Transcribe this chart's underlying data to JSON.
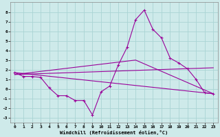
{
  "xlabel": "Windchill (Refroidissement éolien,°C)",
  "bg_color": "#ceeaea",
  "grid_color": "#aad4d4",
  "line_color": "#990099",
  "xlim": [
    -0.5,
    23.5
  ],
  "ylim": [
    -3.5,
    9.0
  ],
  "xticks": [
    0,
    1,
    2,
    3,
    4,
    5,
    6,
    7,
    8,
    9,
    10,
    11,
    12,
    13,
    14,
    15,
    16,
    17,
    18,
    19,
    20,
    21,
    22,
    23
  ],
  "yticks": [
    -3,
    -2,
    -1,
    0,
    1,
    2,
    3,
    4,
    5,
    6,
    7,
    8
  ],
  "series1_x": [
    0,
    1,
    2,
    3,
    4,
    5,
    6,
    7,
    8,
    9,
    10,
    11,
    12,
    13,
    14,
    15,
    16,
    17,
    18,
    19,
    20,
    21,
    22,
    23
  ],
  "series1_y": [
    1.7,
    1.3,
    1.3,
    1.2,
    0.1,
    -0.7,
    -0.7,
    -1.2,
    -1.2,
    -2.7,
    -0.3,
    0.3,
    2.5,
    4.3,
    7.2,
    8.2,
    6.2,
    5.3,
    3.2,
    2.7,
    2.1,
    1.0,
    -0.4,
    -0.5
  ],
  "series2_x": [
    0,
    23
  ],
  "series2_y": [
    1.7,
    -0.5
  ],
  "series3_x": [
    0,
    23
  ],
  "series3_y": [
    1.5,
    2.2
  ],
  "series4_x": [
    0,
    14,
    23
  ],
  "series4_y": [
    1.5,
    3.0,
    -0.5
  ]
}
